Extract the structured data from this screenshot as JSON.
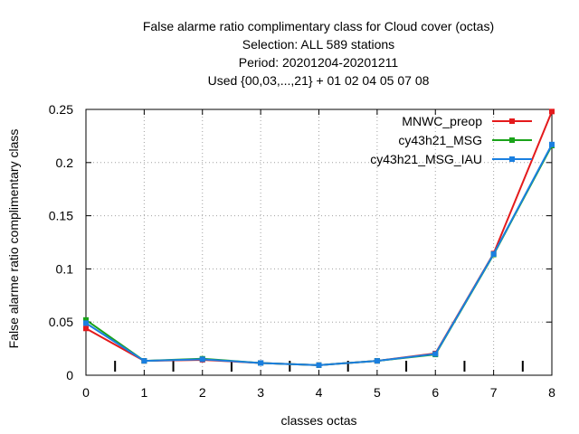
{
  "chart_data": {
    "type": "line",
    "title_lines": [
      "False alarme ratio complimentary class  for Cloud cover (octas)",
      "Selection: ALL     589 stations",
      "Period: 20201204-20201211",
      "Used {00,03,...,21} + 01 02 04 05 07 08"
    ],
    "xlabel": "classes octas",
    "ylabel": "False alarme ratio complimentary class",
    "xlim": [
      0,
      8
    ],
    "ylim": [
      0,
      0.25
    ],
    "x_ticks": [
      0,
      1,
      2,
      3,
      4,
      5,
      6,
      7,
      8
    ],
    "y_ticks": [
      0,
      0.05,
      0.1,
      0.15,
      0.2,
      0.25
    ],
    "y_tick_labels": [
      "0",
      "0.05",
      "0.1",
      "0.15",
      "0.2",
      "0.25"
    ],
    "grid": true,
    "legend_position": "top-right",
    "minor_x_marks": [
      0.5,
      1.5,
      2.5,
      3.5,
      4.5,
      5.5,
      6.5,
      7.5
    ],
    "x": [
      0,
      1,
      2,
      3,
      4,
      5,
      6,
      7,
      8
    ],
    "series": [
      {
        "name": "MNWC_preop",
        "color": "#e41a1c",
        "values": [
          0.044,
          0.0135,
          0.0145,
          0.0115,
          0.0095,
          0.0135,
          0.0205,
          0.1145,
          0.248
        ]
      },
      {
        "name": "cy43h21_MSG",
        "color": "#1aa31a",
        "values": [
          0.052,
          0.0135,
          0.0155,
          0.0115,
          0.0095,
          0.0135,
          0.0195,
          0.1135,
          0.216
        ]
      },
      {
        "name": "cy43h21_MSG_IAU",
        "color": "#1a7fe0",
        "values": [
          0.049,
          0.0135,
          0.015,
          0.0115,
          0.0095,
          0.0135,
          0.02,
          0.114,
          0.217
        ]
      }
    ]
  }
}
